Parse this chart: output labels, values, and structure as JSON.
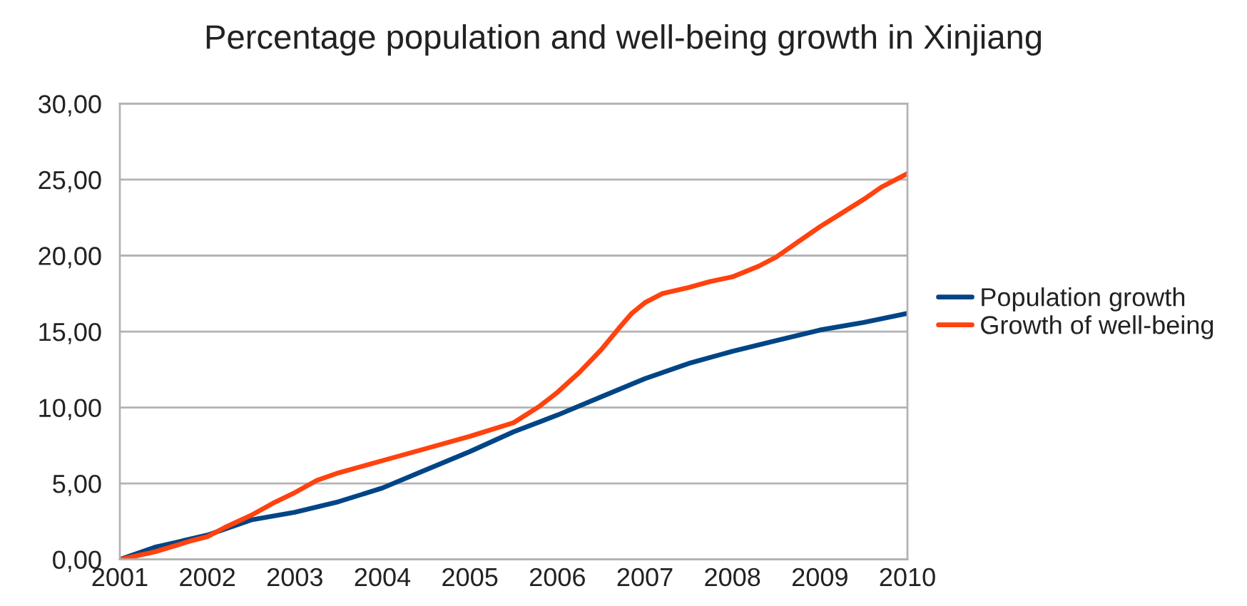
{
  "chart_data": {
    "type": "line",
    "title": "Percentage population and well-being growth in Xinjiang",
    "xlim": [
      2001,
      2010
    ],
    "xticks": [
      2001,
      2002,
      2003,
      2004,
      2005,
      2006,
      2007,
      2008,
      2009,
      2010
    ],
    "ylim": [
      0,
      30
    ],
    "yticks": [
      {
        "value": 0,
        "label": "0,00"
      },
      {
        "value": 5,
        "label": "5,00"
      },
      {
        "value": 10,
        "label": "10,00"
      },
      {
        "value": 15,
        "label": "15,00"
      },
      {
        "value": 20,
        "label": "20,00"
      },
      {
        "value": 25,
        "label": "25,00"
      },
      {
        "value": 30,
        "label": "30,00"
      }
    ],
    "grid": "y",
    "legend": "right",
    "line_style": "solid",
    "marker": "none",
    "series": [
      {
        "name": "Population growth",
        "color": "#004586",
        "x": [
          2001,
          2001.4,
          2002,
          2002.5,
          2003,
          2003.5,
          2004,
          2004.5,
          2005,
          2005.5,
          2006,
          2006.5,
          2007,
          2007.5,
          2008,
          2008.5,
          2009,
          2009.5,
          2010
        ],
        "values": [
          0,
          0.8,
          1.6,
          2.6,
          3.1,
          3.8,
          4.7,
          5.9,
          7.1,
          8.4,
          9.5,
          10.7,
          11.9,
          12.9,
          13.7,
          14.4,
          15.1,
          15.6,
          16.2
        ]
      },
      {
        "name": "Growth of well-being",
        "color": "#ff420e",
        "x": [
          2001,
          2001.4,
          2001.8,
          2002,
          2002.2,
          2002.5,
          2002.75,
          2003,
          2003.25,
          2003.5,
          2004,
          2004.5,
          2005,
          2005.5,
          2005.8,
          2006,
          2006.25,
          2006.5,
          2006.7,
          2006.85,
          2007,
          2007.2,
          2007.5,
          2007.75,
          2008,
          2008.3,
          2008.5,
          2008.75,
          2009,
          2009.25,
          2009.5,
          2009.7,
          2010
        ],
        "values": [
          0,
          0.5,
          1.2,
          1.5,
          2.1,
          2.9,
          3.7,
          4.4,
          5.2,
          5.7,
          6.5,
          7.3,
          8.1,
          9.0,
          10.1,
          11.0,
          12.3,
          13.8,
          15.2,
          16.2,
          16.9,
          17.5,
          17.9,
          18.3,
          18.6,
          19.3,
          19.9,
          20.9,
          21.9,
          22.8,
          23.7,
          24.5,
          25.4
        ]
      }
    ]
  }
}
